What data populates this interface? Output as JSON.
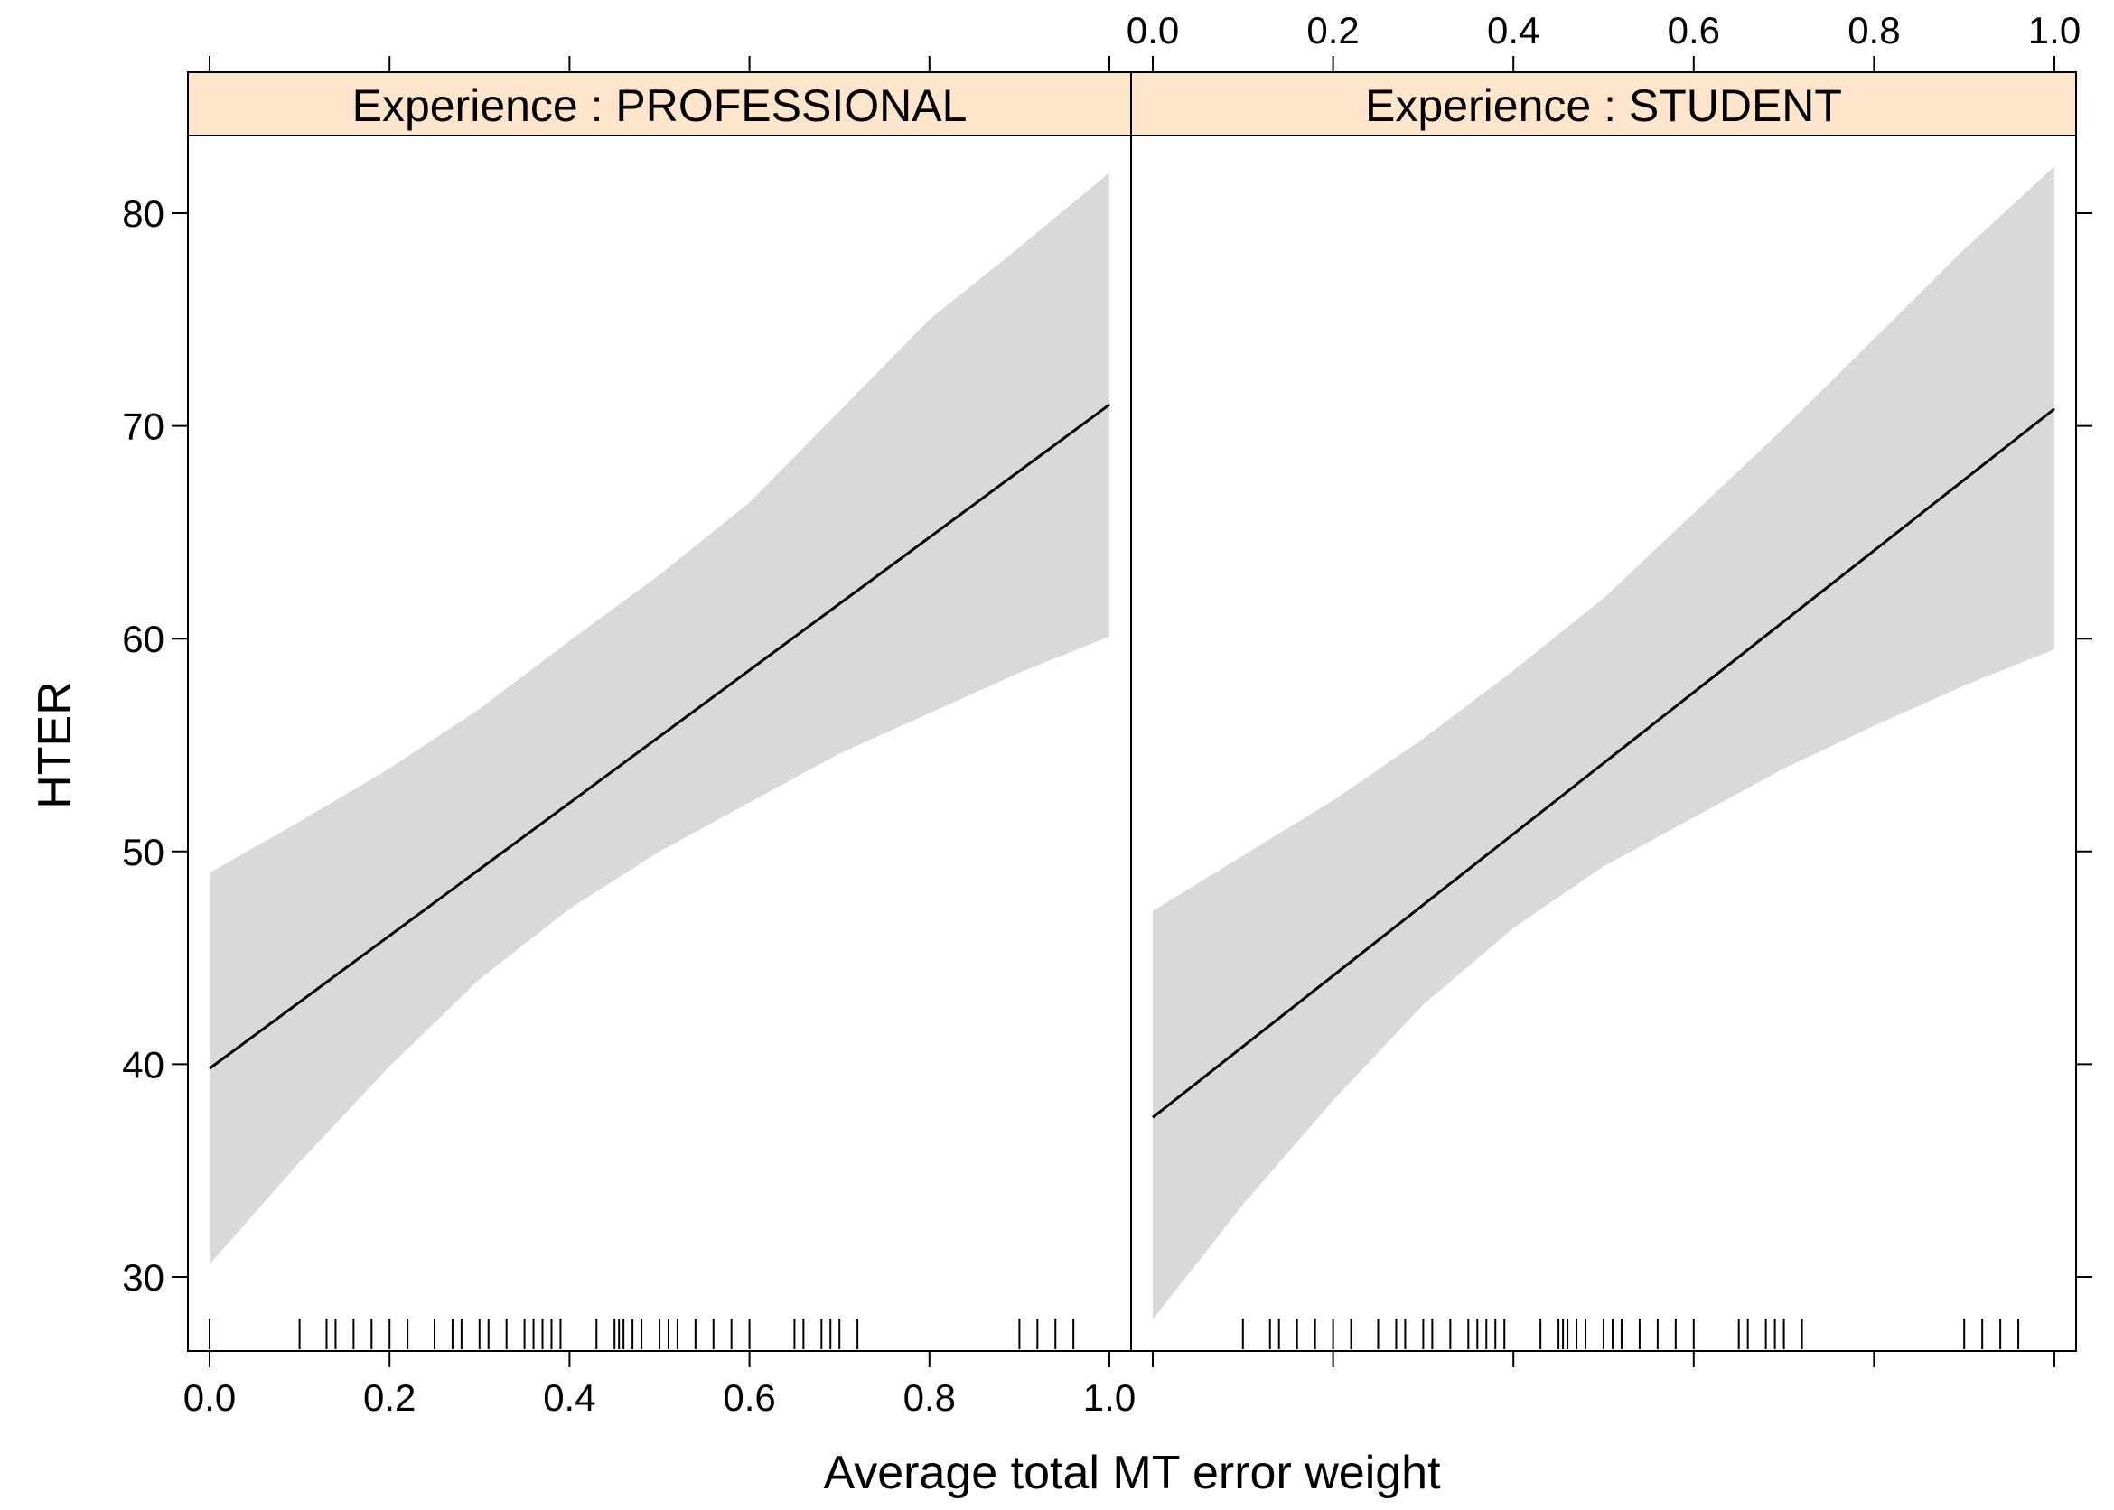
{
  "chart_data": {
    "type": "line",
    "xlabel": "Average total MT error weight",
    "ylabel": "HTER",
    "xlim": [
      0.0,
      1.0
    ],
    "ylim": [
      27,
      84
    ],
    "x_ticks": [
      "0.0",
      "0.2",
      "0.4",
      "0.6",
      "0.8",
      "1.0"
    ],
    "y_ticks": [
      "30",
      "40",
      "50",
      "60",
      "70",
      "80"
    ],
    "panels": [
      {
        "strip": "Experience : PROFESSIONAL",
        "strip_color": "#FFE5CC",
        "fit": {
          "x": [
            0.0,
            1.0
          ],
          "y": [
            39.8,
            71.0
          ]
        },
        "band": {
          "x": [
            0.0,
            0.1,
            0.2,
            0.3,
            0.4,
            0.5,
            0.6,
            0.7,
            0.8,
            0.9,
            1.0
          ],
          "upper": [
            49.0,
            51.4,
            53.9,
            56.7,
            59.9,
            63.0,
            66.4,
            70.7,
            75.0,
            78.4,
            81.9
          ],
          "lower": [
            30.6,
            35.4,
            39.9,
            44.0,
            47.3,
            50.0,
            52.3,
            54.6,
            56.5,
            58.4,
            60.1
          ]
        },
        "rug": [
          0.0,
          0.1,
          0.13,
          0.14,
          0.16,
          0.18,
          0.2,
          0.22,
          0.25,
          0.27,
          0.28,
          0.3,
          0.31,
          0.33,
          0.35,
          0.36,
          0.37,
          0.38,
          0.39,
          0.43,
          0.45,
          0.455,
          0.46,
          0.47,
          0.48,
          0.5,
          0.51,
          0.52,
          0.54,
          0.56,
          0.58,
          0.6,
          0.65,
          0.66,
          0.68,
          0.69,
          0.7,
          0.72,
          0.9,
          0.92,
          0.94,
          0.96
        ]
      },
      {
        "strip": "Experience : STUDENT",
        "strip_color": "#FFE5CC",
        "fit": {
          "x": [
            0.0,
            1.0
          ],
          "y": [
            37.5,
            70.8
          ]
        },
        "band": {
          "x": [
            0.0,
            0.1,
            0.2,
            0.3,
            0.4,
            0.5,
            0.6,
            0.7,
            0.8,
            0.9,
            1.0
          ],
          "upper": [
            47.2,
            49.8,
            52.4,
            55.3,
            58.5,
            61.9,
            65.9,
            69.9,
            74.1,
            78.3,
            82.2
          ],
          "lower": [
            28.0,
            33.4,
            38.3,
            42.8,
            46.4,
            49.3,
            51.6,
            53.9,
            55.9,
            57.8,
            59.5
          ]
        },
        "rug": [
          0.1,
          0.13,
          0.14,
          0.16,
          0.18,
          0.2,
          0.22,
          0.25,
          0.27,
          0.28,
          0.3,
          0.31,
          0.33,
          0.35,
          0.36,
          0.37,
          0.38,
          0.39,
          0.43,
          0.45,
          0.455,
          0.46,
          0.47,
          0.48,
          0.5,
          0.51,
          0.52,
          0.54,
          0.56,
          0.58,
          0.6,
          0.65,
          0.66,
          0.68,
          0.69,
          0.7,
          0.72,
          0.9,
          0.92,
          0.94,
          0.96
        ]
      }
    ],
    "colors": {
      "band": "#D9D9D9",
      "line": "#000000",
      "strip": "#FFE5CC"
    },
    "grid": false
  }
}
